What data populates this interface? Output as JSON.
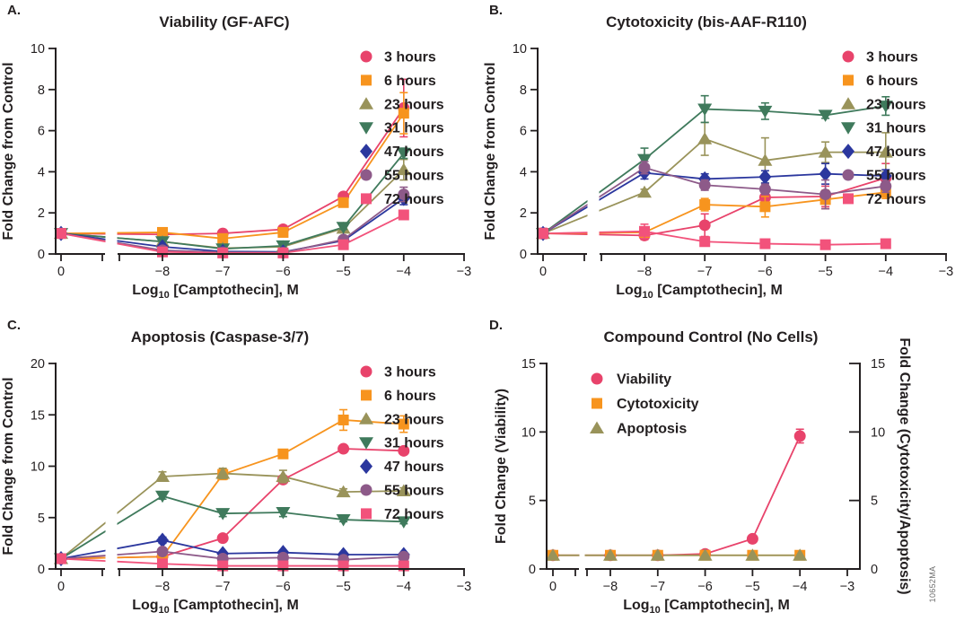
{
  "figure_id": "10652MA",
  "colors": {
    "background": "#FFFFFF",
    "axis": "#231F20",
    "text": "#231F20",
    "figure_id_text": "#6D6D6D",
    "series_3_hours": "#E8436B",
    "series_6_hours": "#F7941E",
    "series_23_hours": "#99935A",
    "series_31_hours": "#3F7A5C",
    "series_47_hours": "#2B379E",
    "series_55_hours": "#8D5A89",
    "series_72_hours": "#F2527B"
  },
  "chart_data": [
    {
      "type": "line",
      "panel_letter": "A.",
      "title": "Viability (GF-AFC)",
      "xlabel": "Log10 [Camptothecin], M",
      "xlabel_parts": {
        "pre": "Log",
        "sub": "10",
        "post": " [Camptothecin], M"
      },
      "ylabel": "Fold Change from Control",
      "x": [
        0,
        -8,
        -7,
        -6,
        -5,
        -4
      ],
      "x_ticks": [
        "0",
        "−8",
        "−7",
        "−6",
        "−5",
        "−4",
        "−3"
      ],
      "x_axis_break": true,
      "ylim": [
        0,
        10
      ],
      "y_ticks": [
        "0",
        "2",
        "4",
        "6",
        "8",
        "10"
      ],
      "legend_position": "right",
      "series": [
        {
          "name": "3 hours",
          "marker": "circle",
          "color": "#E8436B",
          "values": [
            1.0,
            0.95,
            1.0,
            1.2,
            2.8,
            7.1
          ],
          "errors": [
            0,
            0,
            0,
            0,
            0.15,
            1.4
          ]
        },
        {
          "name": "6 hours",
          "marker": "square",
          "color": "#F7941E",
          "values": [
            1.0,
            1.05,
            0.75,
            1.05,
            2.5,
            6.85
          ],
          "errors": [
            0,
            0,
            0,
            0,
            0.15,
            1.0
          ]
        },
        {
          "name": "23 hours",
          "marker": "triangle-up",
          "color": "#99935A",
          "values": [
            1.0,
            0.6,
            0.28,
            0.35,
            1.25,
            4.1
          ],
          "errors": [
            0,
            0,
            0,
            0,
            0.15,
            0.5
          ]
        },
        {
          "name": "31 hours",
          "marker": "triangle-down",
          "color": "#3F7A5C",
          "values": [
            1.0,
            0.6,
            0.25,
            0.4,
            1.3,
            4.9
          ],
          "errors": [
            0,
            0,
            0,
            0,
            0.1,
            0.25
          ]
        },
        {
          "name": "47 hours",
          "marker": "diamond",
          "color": "#2B379E",
          "values": [
            1.0,
            0.35,
            0.12,
            0.1,
            0.65,
            2.7
          ],
          "errors": [
            0,
            0,
            0,
            0,
            0,
            0.3
          ]
        },
        {
          "name": "55 hours",
          "marker": "circle",
          "color": "#8D5A89",
          "values": [
            1.0,
            0.18,
            0.08,
            0.07,
            0.7,
            2.9
          ],
          "errors": [
            0,
            0,
            0,
            0,
            0,
            0.35
          ]
        },
        {
          "name": "72 hours",
          "marker": "square",
          "color": "#F2527B",
          "values": [
            1.0,
            0.1,
            0.05,
            0.05,
            0.45,
            1.9
          ],
          "errors": [
            0,
            0,
            0,
            0,
            0,
            0.2
          ]
        }
      ]
    },
    {
      "type": "line",
      "panel_letter": "B.",
      "title": "Cytotoxicity (bis-AAF-R110)",
      "xlabel": "Log10 [Camptothecin], M",
      "xlabel_parts": {
        "pre": "Log",
        "sub": "10",
        "post": " [Camptothecin], M"
      },
      "ylabel": "Fold Change from Control",
      "x": [
        0,
        -8,
        -7,
        -6,
        -5,
        -4
      ],
      "x_ticks": [
        "0",
        "−8",
        "−7",
        "−6",
        "−5",
        "−4",
        "−3"
      ],
      "x_axis_break": true,
      "ylim": [
        0,
        10
      ],
      "y_ticks": [
        "0",
        "2",
        "4",
        "6",
        "8",
        "10"
      ],
      "legend_position": "right",
      "series": [
        {
          "name": "3 hours",
          "marker": "circle",
          "color": "#E8436B",
          "values": [
            1.0,
            0.9,
            1.4,
            2.75,
            2.8,
            3.7
          ],
          "errors": [
            0.25,
            0.2,
            0.55,
            0.3,
            0.5,
            0.7
          ]
        },
        {
          "name": "6 hours",
          "marker": "square",
          "color": "#F7941E",
          "values": [
            1.0,
            1.05,
            2.4,
            2.3,
            2.65,
            3.0
          ],
          "errors": [
            0.2,
            0.15,
            0.3,
            0.5,
            0.45,
            0.3
          ]
        },
        {
          "name": "23 hours",
          "marker": "triangle-up",
          "color": "#99935A",
          "values": [
            1.0,
            3.0,
            5.6,
            4.55,
            4.95,
            4.95
          ],
          "errors": [
            0,
            0.15,
            0.8,
            1.1,
            0.5,
            0.95
          ]
        },
        {
          "name": "31 hours",
          "marker": "triangle-down",
          "color": "#3F7A5C",
          "values": [
            1.0,
            4.6,
            7.05,
            6.95,
            6.75,
            7.2
          ],
          "errors": [
            0,
            0.55,
            0.65,
            0.4,
            0.15,
            0.45
          ]
        },
        {
          "name": "47 hours",
          "marker": "diamond",
          "color": "#2B379E",
          "values": [
            1.0,
            3.95,
            3.65,
            3.75,
            3.9,
            3.8
          ],
          "errors": [
            0,
            0.3,
            0.25,
            0.3,
            0.5,
            0.3
          ]
        },
        {
          "name": "55 hours",
          "marker": "circle",
          "color": "#8D5A89",
          "values": [
            1.0,
            4.2,
            3.35,
            3.15,
            2.9,
            3.3
          ],
          "errors": [
            0,
            0.3,
            0.25,
            0.25,
            0.7,
            0.3
          ]
        },
        {
          "name": "72 hours",
          "marker": "square",
          "color": "#F2527B",
          "values": [
            1.0,
            1.1,
            0.6,
            0.5,
            0.45,
            0.5
          ],
          "errors": [
            0.1,
            0.35,
            0.15,
            0.1,
            0.1,
            0.1
          ]
        }
      ]
    },
    {
      "type": "line",
      "panel_letter": "C.",
      "title": "Apoptosis (Caspase-3/7)",
      "xlabel": "Log10 [Camptothecin], M",
      "xlabel_parts": {
        "pre": "Log",
        "sub": "10",
        "post": " [Camptothecin], M"
      },
      "ylabel": "Fold Change from Control",
      "x": [
        0,
        -8,
        -7,
        -6,
        -5,
        -4
      ],
      "x_ticks": [
        "0",
        "−8",
        "−7",
        "−6",
        "−5",
        "−4",
        "−3"
      ],
      "x_axis_break": true,
      "ylim": [
        0,
        20
      ],
      "y_ticks": [
        "0",
        "5",
        "10",
        "15",
        "20"
      ],
      "legend_position": "right",
      "series": [
        {
          "name": "3 hours",
          "marker": "circle",
          "color": "#E8436B",
          "values": [
            1.0,
            1.2,
            3.0,
            8.7,
            11.7,
            11.5
          ],
          "errors": [
            0,
            0.1,
            0.2,
            0.3,
            0.3,
            0.3
          ]
        },
        {
          "name": "6 hours",
          "marker": "square",
          "color": "#F7941E",
          "values": [
            1.0,
            1.2,
            9.2,
            11.2,
            14.5,
            14.1
          ],
          "errors": [
            0,
            0.1,
            0.5,
            0.3,
            1.0,
            0.8
          ]
        },
        {
          "name": "23 hours",
          "marker": "triangle-up",
          "color": "#99935A",
          "values": [
            1.0,
            9.0,
            9.3,
            9.0,
            7.5,
            7.6
          ],
          "errors": [
            0,
            0.45,
            0.5,
            0.6,
            0.3,
            0.3
          ]
        },
        {
          "name": "31 hours",
          "marker": "triangle-down",
          "color": "#3F7A5C",
          "values": [
            1.0,
            7.1,
            5.4,
            5.5,
            4.8,
            4.6
          ],
          "errors": [
            0,
            0.3,
            0.3,
            0.4,
            0.2,
            0.2
          ]
        },
        {
          "name": "47 hours",
          "marker": "diamond",
          "color": "#2B379E",
          "values": [
            1.0,
            2.8,
            1.5,
            1.6,
            1.4,
            1.4
          ],
          "errors": [
            0,
            0.3,
            0.15,
            0.2,
            0.15,
            0.15
          ]
        },
        {
          "name": "55 hours",
          "marker": "circle",
          "color": "#8D5A89",
          "values": [
            1.0,
            1.7,
            1.0,
            1.1,
            0.9,
            1.2
          ],
          "errors": [
            0,
            0,
            0,
            0,
            0,
            0
          ]
        },
        {
          "name": "72 hours",
          "marker": "square",
          "color": "#F2527B",
          "values": [
            1.0,
            0.5,
            0.3,
            0.3,
            0.3,
            0.3
          ],
          "errors": [
            0,
            0,
            0,
            0,
            0,
            0
          ]
        }
      ]
    },
    {
      "type": "line",
      "panel_letter": "D.",
      "title": "Compound Control (No Cells)",
      "xlabel": "Log10 [Camptothecin], M",
      "xlabel_parts": {
        "pre": "Log",
        "sub": "10",
        "post": " [Camptothecin], M"
      },
      "ylabel": "Fold Change (Viability)",
      "ylabel_right": "Fold Change (Cytotoxicity/Apoptosis)",
      "x": [
        0,
        -8,
        -7,
        -6,
        -5,
        -4
      ],
      "x_ticks": [
        "0",
        "−8",
        "−7",
        "−6",
        "−5",
        "−4",
        "−3"
      ],
      "x_axis_break": true,
      "ylim": [
        0,
        15
      ],
      "y_ticks": [
        "0",
        "5",
        "10",
        "15"
      ],
      "y_ticks_right": [
        "0",
        "5",
        "10",
        "15"
      ],
      "legend_position": "inside-top-left",
      "series": [
        {
          "name": "Viability",
          "marker": "circle",
          "color": "#E8436B",
          "values": [
            1.0,
            1.0,
            1.0,
            1.1,
            2.2,
            9.7
          ],
          "errors": [
            0,
            0,
            0,
            0,
            0.1,
            0.5
          ]
        },
        {
          "name": "Cytotoxicity",
          "marker": "square",
          "color": "#F7941E",
          "values": [
            1.0,
            1.0,
            1.0,
            1.0,
            1.0,
            1.0
          ],
          "errors": [
            0,
            0,
            0,
            0,
            0,
            0
          ]
        },
        {
          "name": "Apoptosis",
          "marker": "triangle-up",
          "color": "#99935A",
          "values": [
            1.0,
            1.0,
            1.0,
            1.0,
            1.0,
            1.0
          ],
          "errors": [
            0,
            0,
            0,
            0,
            0,
            0
          ]
        }
      ]
    }
  ]
}
